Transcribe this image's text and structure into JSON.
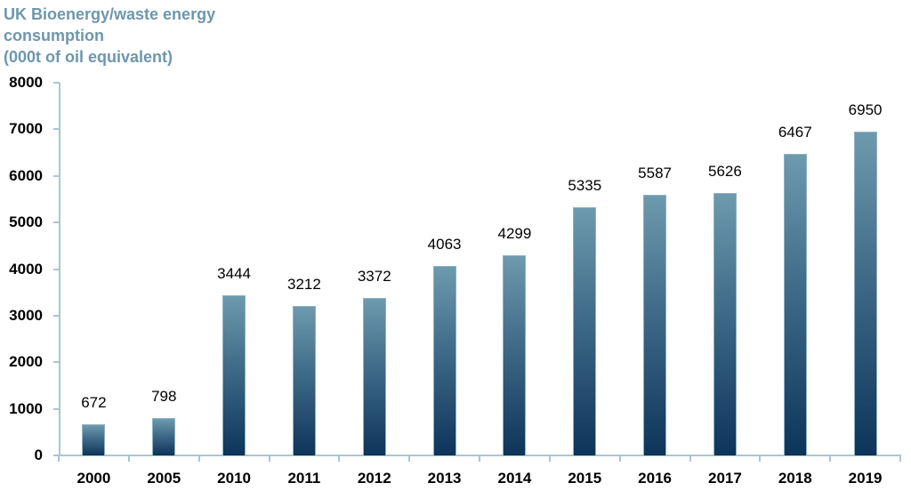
{
  "chart_data": {
    "type": "bar",
    "title": "UK Bioenergy/waste energy consumption (000t of oil equivalent)",
    "title_lines": [
      "UK Bioenergy/waste energy",
      "consumption",
      "(000t of oil equivalent)"
    ],
    "xlabel": "",
    "ylabel": "000t of oil equivalent",
    "categories": [
      "2000",
      "2005",
      "2010",
      "2011",
      "2012",
      "2013",
      "2014",
      "2015",
      "2016",
      "2017",
      "2018",
      "2019"
    ],
    "values": [
      672,
      798,
      3444,
      3212,
      3372,
      4063,
      4299,
      5335,
      5587,
      5626,
      6467,
      6950
    ],
    "ylim": [
      0,
      8000
    ],
    "yticks": [
      "0",
      "1000",
      "2000",
      "3000",
      "4000",
      "5000",
      "6000",
      "7000",
      "8000"
    ],
    "grid": false,
    "legend": null,
    "data_labels": true,
    "colors": {
      "bar_top": "#6e9aae",
      "bar_bottom": "#0d345a",
      "axis": "#a9c6d3",
      "title": "#6e97ab"
    }
  }
}
